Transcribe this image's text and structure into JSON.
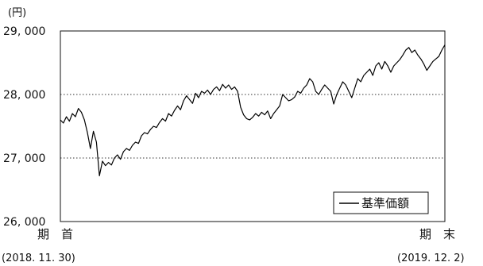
{
  "chart_data": {
    "type": "line",
    "unit": "(円)",
    "ylim": [
      26000,
      29000
    ],
    "y_ticks": [
      "29, 000",
      "28, 000",
      "27, 000",
      "26, 000"
    ],
    "y_tick_values": [
      29000,
      28000,
      27000,
      26000
    ],
    "grid": "dotted horizontal at 27,000 and 28,000",
    "start_label": "期　首",
    "start_date": "(2018. 11. 30)",
    "end_label": "期　末",
    "end_date": "(2019. 12. 2)",
    "legend": "基準価額",
    "legend_position": "bottom-right",
    "series": [
      {
        "name": "基準価額",
        "color": "#000000",
        "values": [
          27600,
          27550,
          27650,
          27580,
          27700,
          27650,
          27780,
          27720,
          27600,
          27400,
          27150,
          27420,
          27250,
          26720,
          26950,
          26880,
          26930,
          26890,
          27000,
          27050,
          26980,
          27100,
          27150,
          27120,
          27200,
          27250,
          27230,
          27350,
          27400,
          27380,
          27450,
          27500,
          27480,
          27560,
          27620,
          27580,
          27700,
          27660,
          27750,
          27820,
          27760,
          27900,
          27980,
          27920,
          27860,
          28020,
          27950,
          28050,
          28020,
          28070,
          28000,
          28080,
          28120,
          28060,
          28160,
          28100,
          28150,
          28080,
          28120,
          28050,
          27800,
          27680,
          27620,
          27600,
          27640,
          27700,
          27660,
          27720,
          27680,
          27740,
          27620,
          27700,
          27760,
          27820,
          28000,
          27950,
          27900,
          27920,
          27960,
          28050,
          28020,
          28100,
          28150,
          28250,
          28200,
          28050,
          28000,
          28080,
          28150,
          28100,
          28050,
          27850,
          28000,
          28100,
          28200,
          28150,
          28050,
          27950,
          28100,
          28250,
          28200,
          28300,
          28350,
          28400,
          28300,
          28450,
          28500,
          28400,
          28520,
          28450,
          28350,
          28450,
          28500,
          28550,
          28620,
          28700,
          28740,
          28660,
          28700,
          28620,
          28560,
          28480,
          28380,
          28450,
          28520,
          28560,
          28600,
          28700,
          28780
        ]
      }
    ]
  }
}
